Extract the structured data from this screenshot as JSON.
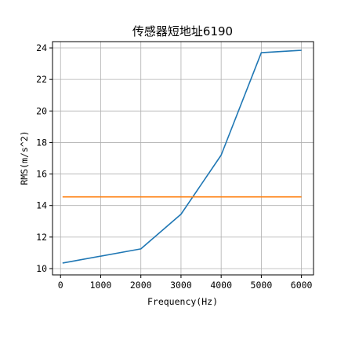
{
  "chart_data": {
    "type": "line",
    "title": "传感器短地址6190",
    "xlabel": "Frequency(Hz)",
    "ylabel": "RMS(m/s^2)",
    "xlim": [
      -200,
      6300
    ],
    "ylim": [
      9.6,
      24.4
    ],
    "xticks": [
      0,
      1000,
      2000,
      3000,
      4000,
      5000,
      6000
    ],
    "yticks": [
      10,
      12,
      14,
      16,
      18,
      20,
      22,
      24
    ],
    "grid": true,
    "series": [
      {
        "color": "#1f77b4",
        "x": [
          50,
          2000,
          3000,
          4000,
          5000,
          6000
        ],
        "y": [
          10.35,
          11.25,
          13.45,
          17.2,
          23.7,
          23.85
        ]
      },
      {
        "color": "#ff7f0e",
        "x": [
          50,
          6000
        ],
        "y": [
          14.55,
          14.55
        ]
      }
    ]
  }
}
